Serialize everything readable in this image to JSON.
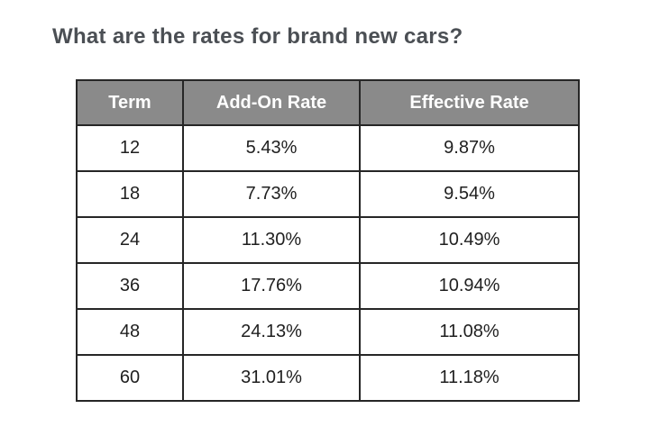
{
  "page": {
    "title": "What are the rates for brand new cars?"
  },
  "colors": {
    "background": "#ffffff",
    "heading_text": "#4b4f54",
    "table_header_bg": "#8a8a8a",
    "table_header_text": "#ffffff",
    "table_border": "#262626",
    "cell_text": "#1f1f1f"
  },
  "table": {
    "headers": [
      "Term",
      "Add-On Rate",
      "Effective Rate"
    ],
    "rows": [
      [
        "12",
        "5.43%",
        "9.87%"
      ],
      [
        "18",
        "7.73%",
        "9.54%"
      ],
      [
        "24",
        "11.30%",
        "10.49%"
      ],
      [
        "36",
        "17.76%",
        "10.94%"
      ],
      [
        "48",
        "24.13%",
        "11.08%"
      ],
      [
        "60",
        "31.01%",
        "11.18%"
      ]
    ]
  },
  "chart_data": {
    "type": "table",
    "title": "What are the rates for brand new cars?",
    "columns": [
      "Term",
      "Add-On Rate",
      "Effective Rate"
    ],
    "rows": [
      {
        "term": 12,
        "add_on_rate_pct": 5.43,
        "effective_rate_pct": 9.87
      },
      {
        "term": 18,
        "add_on_rate_pct": 7.73,
        "effective_rate_pct": 9.54
      },
      {
        "term": 24,
        "add_on_rate_pct": 11.3,
        "effective_rate_pct": 10.49
      },
      {
        "term": 36,
        "add_on_rate_pct": 17.76,
        "effective_rate_pct": 10.94
      },
      {
        "term": 48,
        "add_on_rate_pct": 24.13,
        "effective_rate_pct": 11.08
      },
      {
        "term": 60,
        "add_on_rate_pct": 31.01,
        "effective_rate_pct": 11.18
      }
    ]
  }
}
